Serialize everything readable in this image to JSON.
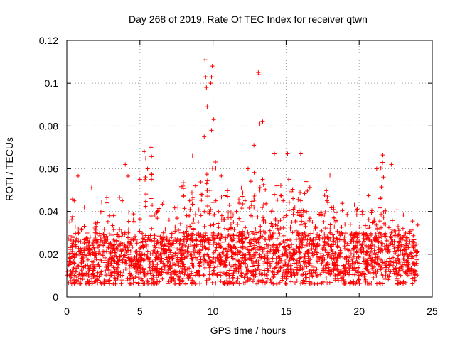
{
  "chart_data": {
    "type": "scatter",
    "title": "Day 268 of 2019, Rate Of TEC Index for receiver qtwn",
    "xlabel": "GPS time / hours",
    "ylabel": "ROTI / TECUs",
    "xlim": [
      0,
      25
    ],
    "ylim": [
      0,
      0.12
    ],
    "xticks": [
      0,
      5,
      10,
      15,
      20,
      25
    ],
    "xtick_labels": [
      "0",
      "5",
      "10",
      "15",
      "20",
      "25"
    ],
    "yticks": [
      0,
      0.02,
      0.04,
      0.06,
      0.08,
      0.1,
      0.12
    ],
    "ytick_labels": [
      "0",
      "0.02",
      "0.04",
      "0.06",
      "0.08",
      "0.1",
      "0.12"
    ],
    "grid": true,
    "marker": "plus",
    "color": "#ff0000",
    "series": [
      {
        "name": "ROTI",
        "description_of_density": "dense cloud of several thousand points between ~0.005 and ~0.05 TECUs across 0-24 h; representative sample below",
        "x": [
          0.05,
          0.2,
          0.35,
          0.5,
          0.65,
          0.8,
          1.0,
          1.2,
          1.4,
          1.6,
          1.8,
          2.0,
          2.2,
          2.4,
          2.6,
          2.8,
          3.0,
          3.2,
          3.4,
          3.6,
          3.8,
          4.0,
          4.2,
          4.4,
          4.6,
          4.8,
          5.0,
          5.2,
          5.4,
          5.6,
          5.8,
          6.0,
          6.2,
          6.4,
          6.6,
          6.8,
          7.0,
          7.2,
          7.4,
          7.6,
          7.8,
          8.0,
          8.2,
          8.4,
          8.6,
          8.8,
          9.0,
          9.2,
          9.4,
          9.6,
          9.8,
          10.0,
          10.2,
          10.4,
          10.6,
          10.8,
          11.0,
          11.2,
          11.4,
          11.6,
          11.8,
          12.0,
          12.2,
          12.4,
          12.6,
          12.8,
          13.0,
          13.2,
          13.4,
          13.6,
          13.8,
          14.0,
          14.2,
          14.4,
          14.6,
          14.8,
          15.0,
          15.2,
          15.4,
          15.6,
          15.8,
          16.0,
          16.2,
          16.4,
          16.6,
          16.8,
          17.0,
          17.2,
          17.4,
          17.6,
          17.8,
          18.0,
          18.2,
          18.4,
          18.6,
          18.8,
          19.0,
          19.2,
          19.4,
          19.6,
          19.8,
          20.0,
          20.2,
          20.4,
          20.6,
          20.8,
          21.0,
          21.2,
          21.4,
          21.6,
          21.8,
          22.0,
          22.2,
          22.4,
          22.6,
          22.8,
          23.0,
          23.2,
          23.4,
          23.6,
          23.8,
          9.45,
          9.5,
          9.55,
          9.6,
          9.85,
          9.9,
          9.95,
          10.05,
          13.1,
          13.15,
          13.2,
          13.4,
          9.4,
          9.9,
          12.8,
          5.3,
          4.0,
          16.0,
          14.2,
          15.1,
          21.6,
          22.2,
          18.0,
          8.6
        ],
        "y": [
          0.012,
          0.035,
          0.025,
          0.045,
          0.02,
          0.03,
          0.018,
          0.042,
          0.022,
          0.028,
          0.015,
          0.033,
          0.024,
          0.04,
          0.017,
          0.027,
          0.021,
          0.038,
          0.026,
          0.019,
          0.045,
          0.023,
          0.03,
          0.016,
          0.035,
          0.025,
          0.055,
          0.028,
          0.065,
          0.018,
          0.032,
          0.024,
          0.04,
          0.02,
          0.03,
          0.022,
          0.036,
          0.018,
          0.027,
          0.042,
          0.025,
          0.03,
          0.038,
          0.045,
          0.028,
          0.052,
          0.035,
          0.048,
          0.04,
          0.05,
          0.058,
          0.03,
          0.045,
          0.025,
          0.038,
          0.032,
          0.028,
          0.022,
          0.035,
          0.04,
          0.03,
          0.025,
          0.045,
          0.06,
          0.038,
          0.042,
          0.03,
          0.05,
          0.055,
          0.035,
          0.028,
          0.04,
          0.048,
          0.032,
          0.025,
          0.045,
          0.038,
          0.05,
          0.035,
          0.042,
          0.03,
          0.045,
          0.028,
          0.04,
          0.025,
          0.035,
          0.032,
          0.028,
          0.038,
          0.024,
          0.045,
          0.03,
          0.026,
          0.035,
          0.02,
          0.03,
          0.028,
          0.025,
          0.034,
          0.022,
          0.03,
          0.026,
          0.04,
          0.028,
          0.032,
          0.024,
          0.035,
          0.06,
          0.03,
          0.025,
          0.034,
          0.022,
          0.03,
          0.026,
          0.028,
          0.02,
          0.032,
          0.024,
          0.018,
          0.026,
          0.015,
          0.111,
          0.103,
          0.098,
          0.089,
          0.1,
          0.103,
          0.108,
          0.083,
          0.105,
          0.104,
          0.081,
          0.082,
          0.075,
          0.078,
          0.071,
          0.068,
          0.062,
          0.067,
          0.067,
          0.067,
          0.063,
          0.062,
          0.057,
          0.066
        ]
      }
    ]
  }
}
